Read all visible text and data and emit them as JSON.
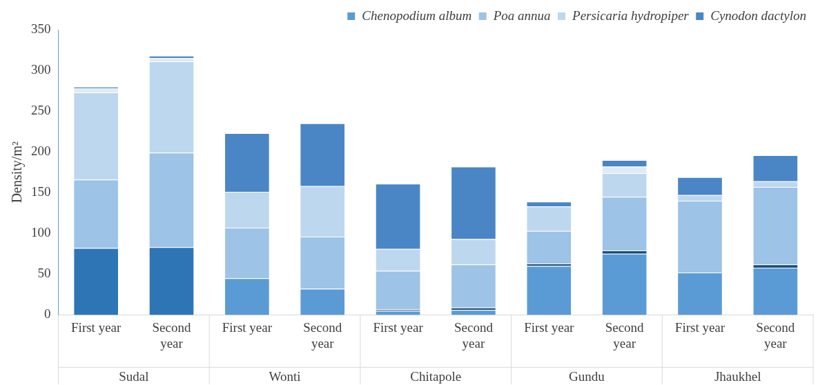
{
  "chart_data": {
    "type": "bar",
    "stacked": true,
    "ylabel": "Density/m²",
    "categories": [
      "First year",
      "Second year",
      "First year",
      "Second year",
      "First year",
      "Second year",
      "First year",
      "Second year",
      "First year",
      "Second year"
    ],
    "annotations": [
      "Sudal",
      "Wonti",
      "Chitapole",
      "Gundu",
      "Jhaukhel"
    ],
    "series": [
      {
        "name": "Chenopodium album",
        "color": "#5b9bd5",
        "values": [
          null,
          null,
          45,
          32,
          5,
          6,
          60,
          75,
          52,
          58
        ]
      },
      {
        "color": "#2e75b6",
        "values": [
          82,
          83,
          null,
          null,
          null,
          null,
          null,
          null,
          null,
          null
        ]
      },
      {
        "color": "#1f4e79",
        "values": [
          null,
          null,
          null,
          null,
          2,
          3,
          3,
          4,
          null,
          4
        ]
      },
      {
        "name": "Poa annua",
        "color": "#9dc3e6",
        "values": [
          84,
          116,
          62,
          64,
          47,
          53,
          40,
          66,
          88,
          95
        ]
      },
      {
        "name": "Persicaria hydropiper",
        "color": "#bdd7ee",
        "values": [
          107,
          112,
          44,
          62,
          27,
          31,
          30,
          29,
          7,
          7
        ]
      },
      {
        "color": "#deebf7",
        "values": [
          5,
          4,
          null,
          null,
          null,
          null,
          null,
          8,
          null,
          null
        ]
      },
      {
        "name": "Cynodon dactylon",
        "color": "#4a86c5",
        "values": [
          2,
          3,
          72,
          77,
          80,
          89,
          6,
          8,
          22,
          32
        ]
      }
    ],
    "ylim": [
      0,
      350
    ],
    "yticks": [
      0,
      50,
      100,
      150,
      200,
      250,
      300,
      350
    ],
    "grid": false,
    "legend": "top right"
  }
}
